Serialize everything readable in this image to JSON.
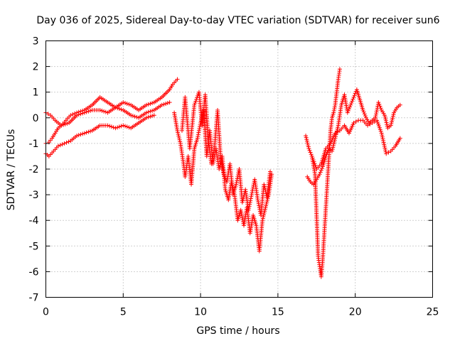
{
  "chart_data": {
    "type": "scatter",
    "title": "Day 036 of 2025, Sidereal Day-to-day VTEC variation (SDTVAR) for receiver sun6",
    "xlabel": "GPS time / hours",
    "ylabel": "SDTVAR / TECUs",
    "xlim": [
      0,
      25
    ],
    "ylim": [
      -7,
      3
    ],
    "xticks": [
      0,
      5,
      10,
      15,
      20,
      25
    ],
    "yticks": [
      -7,
      -6,
      -5,
      -4,
      -3,
      -2,
      -1,
      0,
      1,
      2,
      3
    ],
    "grid": true,
    "marker": "+",
    "color": "#ff0000",
    "series": [
      {
        "name": "sun6",
        "x": [
          0.0,
          0.2,
          0.4,
          0.6,
          0.8,
          1.0,
          1.3,
          1.6,
          2.0,
          2.5,
          3.0,
          3.5,
          4.0,
          4.5,
          5.0,
          5.5,
          6.0,
          6.5,
          7.0,
          7.5,
          8.0,
          8.2,
          8.5,
          0.0,
          0.3,
          0.6,
          1.0,
          1.5,
          2.0,
          2.5,
          3.0,
          3.5,
          4.0,
          4.5,
          5.0,
          5.5,
          6.0,
          6.5,
          7.0,
          7.5,
          8.0,
          0.0,
          0.2,
          0.5,
          0.8,
          1.2,
          1.6,
          2.0,
          2.5,
          3.0,
          3.5,
          4.0,
          4.5,
          5.0,
          5.5,
          6.0,
          6.5,
          7.0,
          8.3,
          8.5,
          8.7,
          8.9,
          9.0,
          9.2,
          9.4,
          9.6,
          9.8,
          10.0,
          10.2,
          10.4,
          10.6,
          10.8,
          11.0,
          11.2,
          11.4,
          11.6,
          11.8,
          12.0,
          12.2,
          12.4,
          12.6,
          12.8,
          13.0,
          13.2,
          13.4,
          13.6,
          13.8,
          14.0,
          14.2,
          14.4,
          14.6,
          8.8,
          9.0,
          9.3,
          9.6,
          9.9,
          10.1,
          10.3,
          10.5,
          10.7,
          10.9,
          11.1,
          11.3,
          11.5,
          11.7,
          11.9,
          12.1,
          12.3,
          12.5,
          12.7,
          12.9,
          13.1,
          13.3,
          13.5,
          13.7,
          13.9,
          14.1,
          14.3,
          14.5,
          16.8,
          17.0,
          17.2,
          17.4,
          17.6,
          17.7,
          17.8,
          17.9,
          18.0,
          18.1,
          18.2,
          18.3,
          18.4,
          18.5,
          18.6,
          18.7,
          18.8,
          18.9,
          19.0,
          16.9,
          17.1,
          17.3,
          17.5,
          17.7,
          17.9,
          18.1,
          18.3,
          18.5,
          18.7,
          18.9,
          19.1,
          19.3,
          19.5,
          19.7,
          19.9,
          20.1,
          20.3,
          20.5,
          20.7,
          20.9,
          21.1,
          21.3,
          21.5,
          21.7,
          21.9,
          22.1,
          22.3,
          22.5,
          22.7,
          22.9,
          17.2,
          17.5,
          17.8,
          18.1,
          18.4,
          18.7,
          19.0,
          19.3,
          19.6,
          19.9,
          20.2,
          20.5,
          20.8,
          21.1,
          21.4,
          21.7,
          22.0,
          22.3,
          22.6,
          22.9
        ],
        "y": [
          -1.0,
          -0.95,
          -0.8,
          -0.6,
          -0.4,
          -0.3,
          -0.1,
          0.1,
          0.2,
          0.3,
          0.5,
          0.8,
          0.6,
          0.4,
          0.6,
          0.5,
          0.3,
          0.5,
          0.6,
          0.8,
          1.1,
          1.3,
          1.5,
          0.2,
          0.1,
          -0.1,
          -0.3,
          -0.2,
          0.1,
          0.2,
          0.3,
          0.3,
          0.2,
          0.4,
          0.3,
          0.1,
          0.0,
          0.2,
          0.3,
          0.5,
          0.6,
          -1.4,
          -1.5,
          -1.3,
          -1.1,
          -1.0,
          -0.9,
          -0.7,
          -0.6,
          -0.5,
          -0.3,
          -0.3,
          -0.4,
          -0.3,
          -0.4,
          -0.2,
          0.0,
          0.1,
          0.2,
          -0.5,
          -1.0,
          -1.8,
          -2.3,
          -1.5,
          -2.6,
          -1.2,
          -0.8,
          -0.2,
          0.3,
          -1.5,
          -0.5,
          -1.8,
          -1.2,
          -2.0,
          -1.5,
          -2.8,
          -3.2,
          -2.5,
          -3.0,
          -4.0,
          -3.6,
          -4.2,
          -3.5,
          -4.5,
          -3.8,
          -4.2,
          -5.2,
          -4.0,
          -3.5,
          -3.0,
          -2.2,
          -0.5,
          0.8,
          -1.2,
          0.5,
          1.0,
          -0.3,
          0.9,
          -0.8,
          -1.8,
          -1.2,
          0.3,
          -1.6,
          -2.2,
          -2.5,
          -1.8,
          -3.0,
          -2.6,
          -2.0,
          -3.3,
          -2.8,
          -3.6,
          -3.0,
          -2.4,
          -3.2,
          -3.8,
          -2.6,
          -3.1,
          -2.1,
          -0.7,
          -1.2,
          -1.5,
          -2.2,
          -5.4,
          -5.8,
          -6.2,
          -5.5,
          -4.5,
          -3.5,
          -2.5,
          -1.5,
          -0.5,
          0.0,
          0.2,
          0.5,
          1.0,
          1.5,
          1.9,
          -2.3,
          -2.5,
          -2.6,
          -2.4,
          -2.2,
          -1.9,
          -1.5,
          -1.2,
          -1.3,
          -0.8,
          -0.3,
          0.5,
          0.9,
          0.2,
          0.5,
          0.8,
          1.1,
          0.7,
          0.3,
          0.0,
          -0.2,
          -0.1,
          0.0,
          0.6,
          0.3,
          0.1,
          -0.4,
          -0.3,
          0.2,
          0.4,
          0.5,
          -1.5,
          -2.0,
          -1.8,
          -1.2,
          -1.0,
          -0.6,
          -0.5,
          -0.3,
          -0.6,
          -0.2,
          -0.1,
          -0.1,
          -0.3,
          -0.2,
          -0.1,
          -0.6,
          -1.4,
          -1.3,
          -1.1,
          -0.8
        ]
      }
    ]
  }
}
